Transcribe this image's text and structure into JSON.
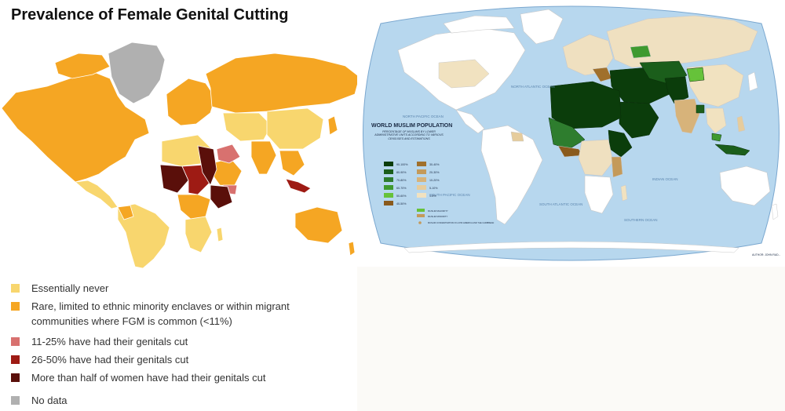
{
  "left": {
    "title": "Prevalence of Female Genital Cutting",
    "legend": [
      {
        "label": "Essentially never",
        "color": "#f8d66e"
      },
      {
        "label": "Rare, limited to ethnic minority enclaves or within migrant communities where FGM is common (<11%)",
        "color": "#f5a623"
      },
      {
        "label": "11-25% have had their genitals cut",
        "color": "#d8716f"
      },
      {
        "label": "26-50% have had their genitals cut",
        "color": "#9e1b14"
      },
      {
        "label": "More than half of women have had their genitals cut",
        "color": "#5a0f0a"
      },
      {
        "label": "No data",
        "color": "#b0b0b0"
      }
    ]
  },
  "right": {
    "title": "WORLD MUSLIM POPULATION",
    "subtitle": "PERCENTAGE OF MUSLIMS BY LOWER ADMINISTRATIVE UNITS ACCORDING TO VARIOUS CENSUSES AND ESTIMATIONS",
    "legend_left": [
      {
        "label": "90-100%",
        "color": "#0b3d0b"
      },
      {
        "label": "80-90%",
        "color": "#1b5e1b"
      },
      {
        "label": "70-80%",
        "color": "#2e7d2e"
      },
      {
        "label": "60-70%",
        "color": "#3f9a2f"
      },
      {
        "label": "50-60%",
        "color": "#66c23a"
      },
      {
        "label": "40-50%",
        "color": "#8a5a1c"
      }
    ],
    "legend_right": [
      {
        "label": "30-40%",
        "color": "#a0702c"
      },
      {
        "label": "20-30%",
        "color": "#c49a5a"
      },
      {
        "label": "10-20%",
        "color": "#d7b37a"
      },
      {
        "label": "5-10%",
        "color": "#e6cc9c"
      },
      {
        "label": "1-5%",
        "color": "#f1e2c0"
      }
    ],
    "legend_notes": [
      "MUSLIM MAJORITY",
      "MUSLIM MINORITY",
      "MUSLIM CONCENTRATION IN LATIN AMERICA AND THE CARIBBEAN"
    ],
    "author": "AUTHOR: JOHN RAD...",
    "oceans": [
      "NORTH PACIFIC OCEAN",
      "NORTH ATLANTIC OCEAN",
      "SOUTH PACIFIC OCEAN",
      "SOUTH ATLANTIC OCEAN",
      "INDIAN OCEAN",
      "SOUTHERN OCEAN"
    ],
    "colors": {
      "ocean": "#b7d7ee",
      "land_none": "#ffffff",
      "land_low": "#efe0c0"
    }
  }
}
